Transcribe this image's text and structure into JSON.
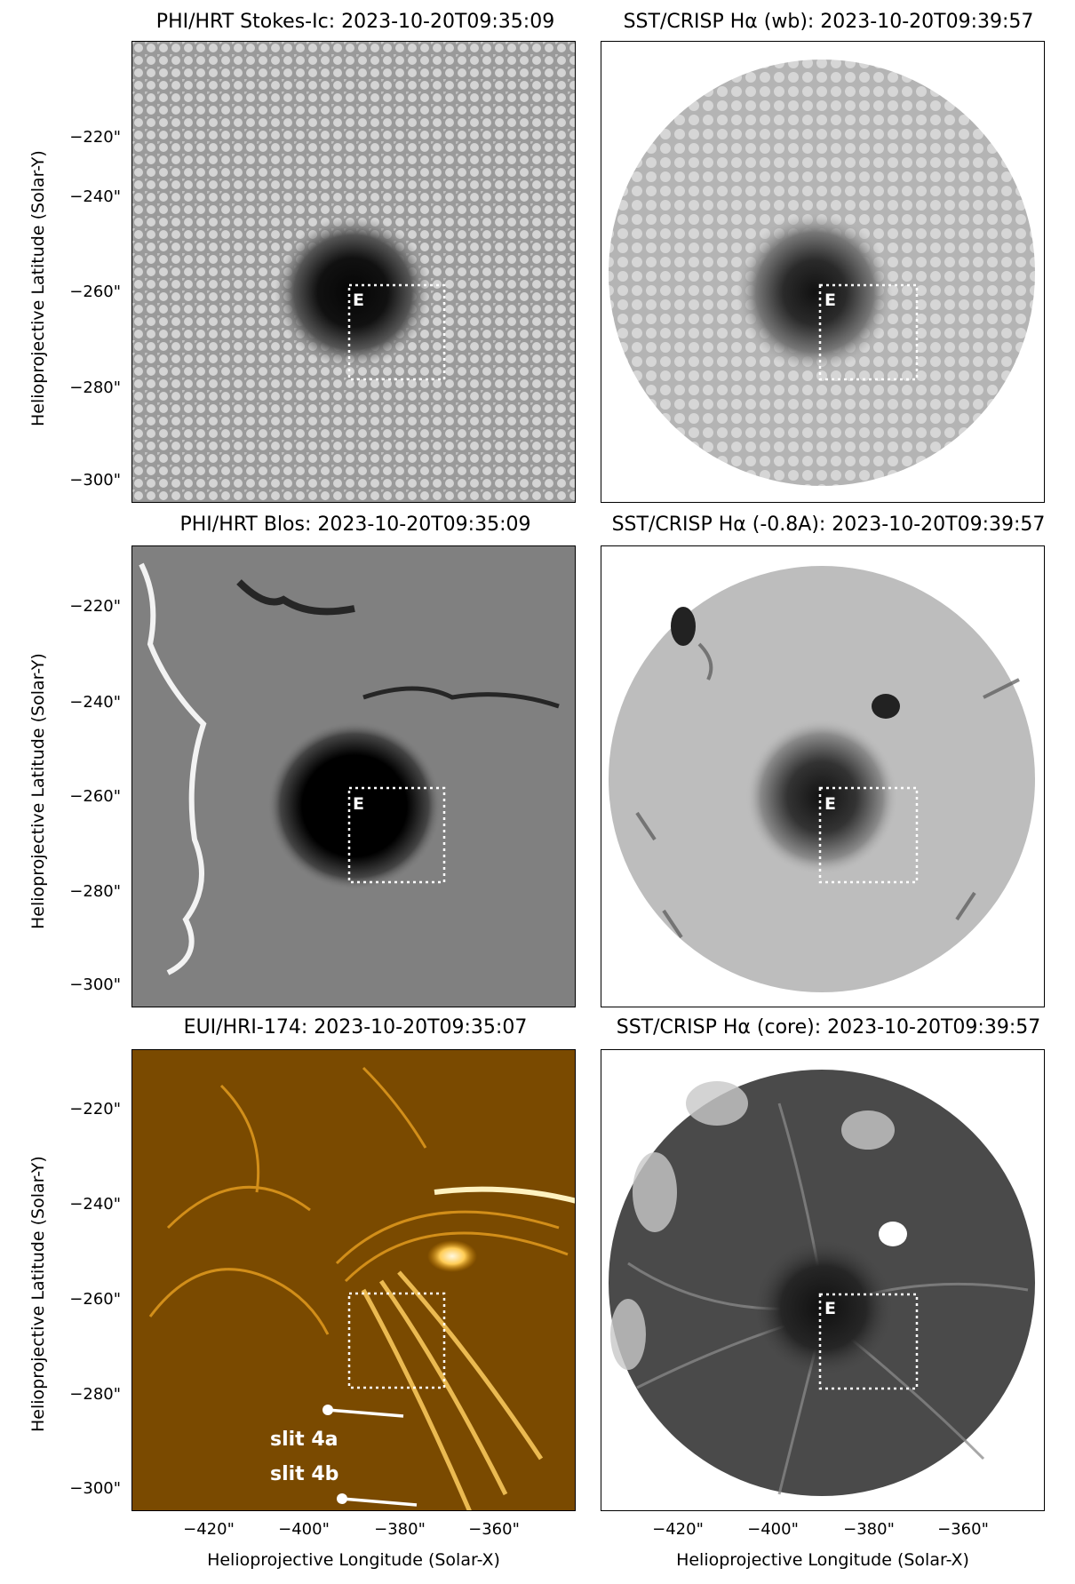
{
  "panels": {
    "p1": {
      "title": "PHI/HRT Stokes-Ic: 2023-10-20T09:35:09"
    },
    "p2": {
      "title": "SST/CRISP Hα (wb): 2023-10-20T09:39:57"
    },
    "p3": {
      "title": "PHI/HRT Blos: 2023-10-20T09:35:09"
    },
    "p4": {
      "title": "SST/CRISP Hα (-0.8A): 2023-10-20T09:39:57"
    },
    "p5": {
      "title": "EUI/HRI-174: 2023-10-20T09:35:07"
    },
    "p6": {
      "title": "SST/CRISP Hα (core): 2023-10-20T09:39:57"
    }
  },
  "axes": {
    "ylabel": "Helioprojective Latitude (Solar-Y)",
    "xlabel": "Helioprojective Longitude (Solar-X)",
    "yticks": [
      "−220\"",
      "−240\"",
      "−260\"",
      "−280\"",
      "−300\""
    ],
    "xticks": [
      "−420\"",
      "−400\"",
      "−380\"",
      "−360\""
    ]
  },
  "annotations": {
    "box_label": "E",
    "slit_a": "slit 4a",
    "slit_b": "slit 4b"
  },
  "colors": {
    "euv": "#d48a00",
    "box": "#ffffff"
  }
}
